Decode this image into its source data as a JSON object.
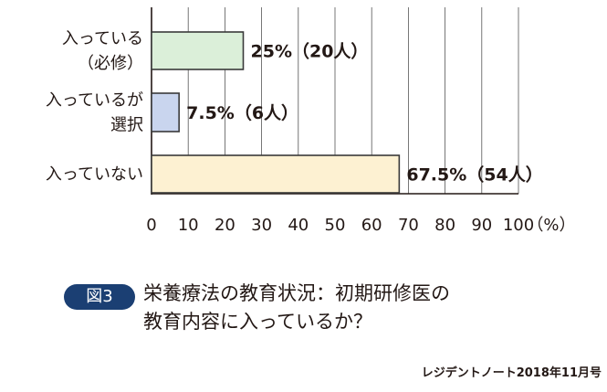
{
  "chart_data": {
    "type": "bar",
    "orientation": "horizontal",
    "categories": [
      [
        "入っている",
        "（必修）"
      ],
      [
        "入っているが",
        "選択"
      ],
      [
        "入っていない"
      ]
    ],
    "values": [
      25,
      7.5,
      67.5
    ],
    "counts": [
      20,
      6,
      54
    ],
    "data_labels": [
      "25%（20人）",
      "7.5%（6人）",
      "67.5%（54人）"
    ],
    "colors": [
      "#dbefd9",
      "#c9d5ee",
      "#fdf1d2"
    ],
    "xlim": [
      0,
      100
    ],
    "xticks": [
      "0",
      "10",
      "20",
      "30",
      "40",
      "50",
      "60",
      "70",
      "80",
      "90",
      "100"
    ],
    "xlabel": "（%）",
    "grid": true
  },
  "caption": {
    "badge": "図3",
    "title_line1": "栄養療法の教育状況：初期研修医の",
    "title_line2": "教育内容に入っているか？"
  },
  "source": "レジデントノート2018年11月号"
}
